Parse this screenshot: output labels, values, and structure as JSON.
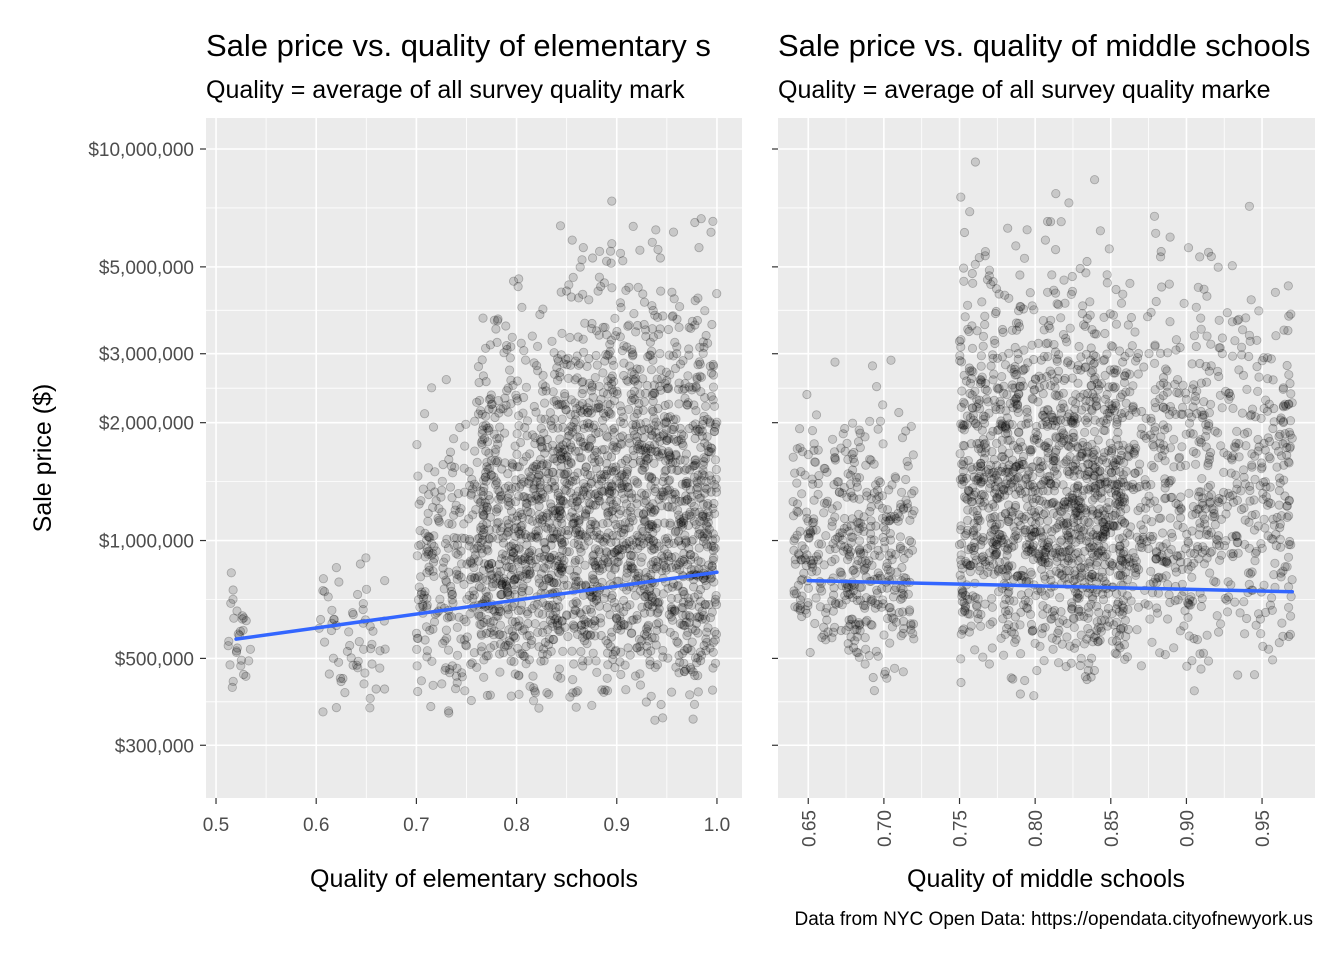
{
  "chart_data": [
    {
      "type": "scatter",
      "title": "Sale price vs. quality of elementary s",
      "subtitle": "Quality = average of all survey quality mark",
      "xlabel": "Quality of elementary schools",
      "ylabel": "Sale price ($)",
      "x_scale": "linear",
      "y_scale": "log10",
      "xlim": [
        0.49,
        1.025
      ],
      "ylim": [
        220000,
        12000000
      ],
      "x_ticks": [
        0.5,
        0.6,
        0.7,
        0.8,
        0.9,
        1.0
      ],
      "x_tick_labels": [
        "0.5",
        "0.6",
        "0.7",
        "0.8",
        "0.9",
        "1.0"
      ],
      "y_ticks": [
        300000,
        500000,
        1000000,
        2000000,
        3000000,
        5000000,
        10000000
      ],
      "y_tick_labels": [
        "$300,000",
        "$500,000",
        "$1,000,000",
        "$2,000,000",
        "$3,000,000",
        "$5,000,000",
        "$10,000,000"
      ],
      "grid": true,
      "point_color": "#000000",
      "point_alpha": 0.15,
      "trend_line": {
        "color": "#3366FF",
        "x": [
          0.52,
          1.0
        ],
        "y": [
          560000,
          830000
        ]
      },
      "point_clusters": [
        {
          "x_range": [
            0.51,
            0.535
          ],
          "y_range": [
            350000,
            1050000
          ],
          "count": 28
        },
        {
          "x_range": [
            0.6,
            0.67
          ],
          "y_range": [
            340000,
            1100000
          ],
          "count": 60
        },
        {
          "x_range": [
            0.7,
            0.76
          ],
          "y_range": [
            340000,
            3500000
          ],
          "count": 220
        },
        {
          "x_range": [
            0.76,
            0.84
          ],
          "y_range": [
            330000,
            6000000
          ],
          "count": 650
        },
        {
          "x_range": [
            0.84,
            1.0
          ],
          "y_range": [
            320000,
            10000000
          ],
          "count": 1500
        }
      ]
    },
    {
      "type": "scatter",
      "title": "Sale price vs. quality of middle schools",
      "subtitle": "Quality = average of all survey quality marke",
      "xlabel": "Quality of middle schools",
      "ylabel": "",
      "x_scale": "linear",
      "y_scale": "log10",
      "xlim": [
        0.63,
        0.985
      ],
      "ylim": [
        220000,
        12000000
      ],
      "x_ticks": [
        0.65,
        0.7,
        0.75,
        0.8,
        0.85,
        0.9,
        0.95
      ],
      "x_tick_labels": [
        "0.65",
        "0.70",
        "0.75",
        "0.80",
        "0.85",
        "0.90",
        "0.95"
      ],
      "grid": true,
      "point_color": "#000000",
      "point_alpha": 0.15,
      "trend_line": {
        "color": "#3366FF",
        "x": [
          0.65,
          0.97
        ],
        "y": [
          790000,
          740000
        ]
      },
      "point_clusters": [
        {
          "x_range": [
            0.64,
            0.665
          ],
          "y_range": [
            480000,
            3000000
          ],
          "count": 120
        },
        {
          "x_range": [
            0.665,
            0.72
          ],
          "y_range": [
            390000,
            3500000
          ],
          "count": 350
        },
        {
          "x_range": [
            0.75,
            0.82
          ],
          "y_range": [
            390000,
            10000000
          ],
          "count": 900
        },
        {
          "x_range": [
            0.82,
            0.86
          ],
          "y_range": [
            390000,
            9000000
          ],
          "count": 600
        },
        {
          "x_range": [
            0.86,
            0.97
          ],
          "y_range": [
            390000,
            9000000
          ],
          "count": 700
        }
      ]
    }
  ],
  "caption": "Data from NYC Open Data: https://opendata.cityofnewyork.us"
}
